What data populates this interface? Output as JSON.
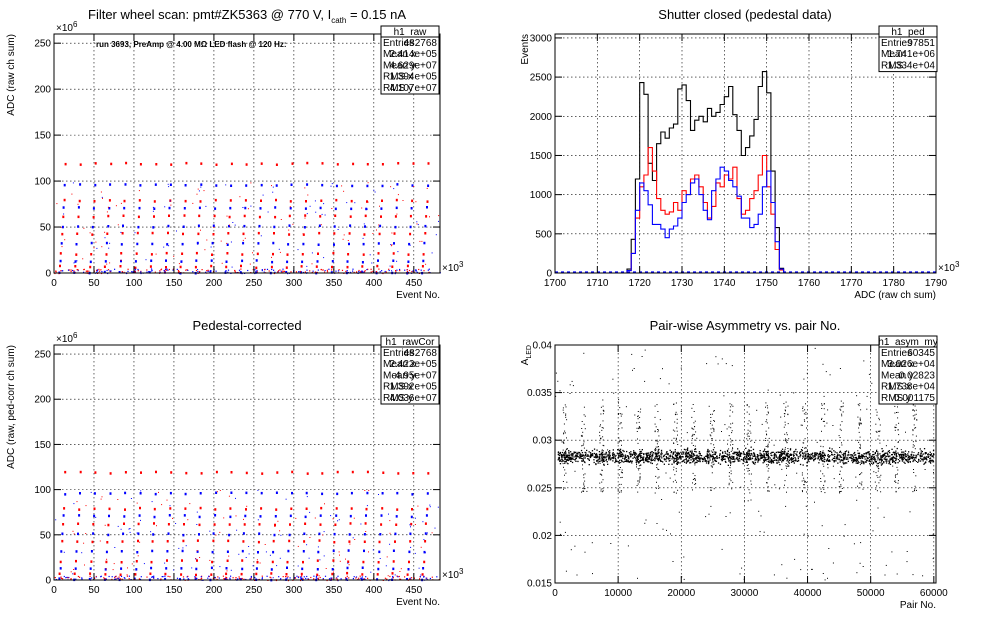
{
  "chart_data": [
    {
      "id": "raw",
      "type": "scatter",
      "title": "Filter wheel scan: pmt#ZK5363 @   770 V, I",
      "title_sub": "cath",
      "title_tail": " = 0.15 nA",
      "annotation": "run 3693, PreAmp @ 4.00 MΩ LED flash @  120 Hz:",
      "xlabel": "Event No.",
      "ylabel": "ADC (raw ch sum)",
      "xlim": [
        0,
        482768
      ],
      "ylim": [
        0,
        260000000
      ],
      "x_multiplier": "×10",
      "x_multiplier_exp": "3",
      "y_multiplier": "×10",
      "y_multiplier_exp": "6",
      "xticks": [
        "0",
        "50",
        "100",
        "150",
        "200",
        "250",
        "300",
        "350",
        "400",
        "450"
      ],
      "xtick_values": [
        0,
        50000,
        100000,
        150000,
        200000,
        250000,
        300000,
        350000,
        400000,
        450000
      ],
      "yticks": [
        "0",
        "50",
        "100",
        "150",
        "200",
        "250"
      ],
      "ytick_values": [
        0,
        50000000,
        100000000,
        150000000,
        200000000,
        250000000
      ],
      "stats": {
        "name": "h1_raw",
        "rows": [
          [
            "Entries",
            "482768"
          ],
          [
            "Mean x",
            "2.414e+05"
          ],
          [
            "Mean y",
            "4.629e+07"
          ],
          [
            "RMS x",
            "1.394e+05"
          ],
          [
            "RMS y",
            "4.107e+07"
          ]
        ]
      },
      "levels": [
        2,
        8,
        14,
        22,
        33,
        44,
        52,
        63,
        72,
        80,
        97,
        120
      ],
      "level_colors": [
        "#0000ff",
        "#ff0000",
        "#0000ff",
        "#ff0000",
        "#0000ff",
        "#ff0000",
        "#0000ff",
        "#ff0000",
        "#0000ff",
        "#ff0000",
        "#0000ff",
        "#ff0000"
      ]
    },
    {
      "id": "ped",
      "type": "line",
      "title": "Shutter closed (pedestal data)",
      "xlabel": "ADC (raw ch sum)",
      "ylabel": "Events",
      "xlim": [
        1700000,
        1790000
      ],
      "ylim": [
        0,
        3050
      ],
      "x_multiplier": "×10",
      "x_multiplier_exp": "3",
      "xticks": [
        "1700",
        "1710",
        "1720",
        "1730",
        "1740",
        "1750",
        "1760",
        "1770",
        "1780",
        "1790"
      ],
      "xtick_values": [
        1700000,
        1710000,
        1720000,
        1730000,
        1740000,
        1750000,
        1760000,
        1770000,
        1780000,
        1790000
      ],
      "yticks": [
        "0",
        "500",
        "1000",
        "1500",
        "2000",
        "2500",
        "3000"
      ],
      "ytick_values": [
        0,
        500,
        1000,
        1500,
        2000,
        2500,
        3000
      ],
      "stats": {
        "name": "h1_ped",
        "rows": [
          [
            "Entries",
            "97851"
          ],
          [
            "Mean",
            "1.741e+06"
          ],
          [
            "RMS",
            "1.334e+04"
          ]
        ]
      },
      "bin_start": 1717000,
      "bin_width": 1000,
      "series": [
        {
          "color": "#000000",
          "values": [
            50,
            430,
            1200,
            2430,
            2280,
            1400,
            1180,
            1650,
            1800,
            1720,
            1850,
            1900,
            2350,
            2400,
            2200,
            1820,
            1950,
            2000,
            1930,
            2100,
            2000,
            2050,
            2150,
            2250,
            2380,
            2020,
            1820,
            1500,
            1600,
            1750,
            1960,
            2380,
            2570,
            2300,
            1300,
            580,
            60,
            0
          ]
        },
        {
          "color": "#ff0000",
          "values": [
            30,
            250,
            700,
            1100,
            1250,
            1600,
            1300,
            950,
            800,
            750,
            780,
            900,
            800,
            1050,
            1000,
            1200,
            1250,
            1100,
            900,
            700,
            850,
            1150,
            1100,
            1250,
            1200,
            1350,
            950,
            750,
            800,
            950,
            1050,
            1250,
            1500,
            1100,
            750,
            300,
            40,
            0
          ]
        },
        {
          "color": "#0000ff",
          "values": [
            30,
            250,
            800,
            1150,
            1050,
            870,
            620,
            620,
            560,
            450,
            560,
            600,
            700,
            900,
            1000,
            1150,
            1200,
            1000,
            800,
            680,
            1050,
            1200,
            1350,
            1300,
            1180,
            1100,
            980,
            700,
            700,
            580,
            620,
            750,
            1100,
            1300,
            900,
            400,
            50,
            0
          ]
        },
        {
          "color": "#0000ff",
          "dashed": true,
          "values": []
        }
      ]
    },
    {
      "id": "rawcor",
      "type": "scatter",
      "title": "Pedestal-corrected",
      "xlabel": "Event No.",
      "ylabel": "ADC (raw, ped-corr ch sum)",
      "xlim": [
        0,
        482768
      ],
      "ylim": [
        0,
        260000000
      ],
      "x_multiplier": "×10",
      "x_multiplier_exp": "3",
      "y_multiplier": "×10",
      "y_multiplier_exp": "6",
      "xticks": [
        "0",
        "50",
        "100",
        "150",
        "200",
        "250",
        "300",
        "350",
        "400",
        "450"
      ],
      "xtick_values": [
        0,
        50000,
        100000,
        150000,
        200000,
        250000,
        300000,
        350000,
        400000,
        450000
      ],
      "yticks": [
        "0",
        "50",
        "100",
        "150",
        "200",
        "250"
      ],
      "ytick_values": [
        0,
        50000000,
        100000000,
        150000000,
        200000000,
        250000000
      ],
      "stats": {
        "name": "h1_rawCor",
        "rows": [
          [
            "Entries",
            "482768"
          ],
          [
            "Mean x",
            "2.422e+05"
          ],
          [
            "Mean y",
            "4.95e+07"
          ],
          [
            "RMS x",
            "1.392e+05"
          ],
          [
            "RMS y",
            "4.036e+07"
          ]
        ]
      },
      "levels": [
        2,
        8,
        14,
        22,
        33,
        44,
        52,
        63,
        72,
        80,
        97,
        120
      ],
      "level_colors": [
        "#0000ff",
        "#ff0000",
        "#0000ff",
        "#ff0000",
        "#0000ff",
        "#ff0000",
        "#0000ff",
        "#ff0000",
        "#0000ff",
        "#ff0000",
        "#0000ff",
        "#ff0000"
      ]
    },
    {
      "id": "asym",
      "type": "scatter",
      "title": "Pair-wise Asymmetry vs. pair No.",
      "xlabel": "Pair No.",
      "ylabel": "A",
      "ylabel_sub": "LED",
      "xlim": [
        0,
        60345
      ],
      "ylim": [
        0.015,
        0.04
      ],
      "xticks": [
        "0",
        "10000",
        "20000",
        "30000",
        "40000",
        "50000",
        "60000"
      ],
      "xtick_values": [
        0,
        10000,
        20000,
        30000,
        40000,
        50000,
        60000
      ],
      "yticks": [
        "0.015",
        "0.02",
        "0.025",
        "0.03",
        "0.035",
        "0.04"
      ],
      "ytick_values": [
        0.015,
        0.02,
        0.025,
        0.03,
        0.035,
        0.04
      ],
      "stats": {
        "name": "h1_asym_my",
        "rows": [
          [
            "Entries",
            "60345"
          ],
          [
            "Mean x",
            "3.026e+04"
          ],
          [
            "Mean y",
            "0.02823"
          ],
          [
            "RMS x",
            "1.738e+04"
          ],
          [
            "RMS y",
            "0.001175"
          ]
        ]
      },
      "band_center": 0.0283,
      "band_halfwidth": 0.0006
    }
  ]
}
